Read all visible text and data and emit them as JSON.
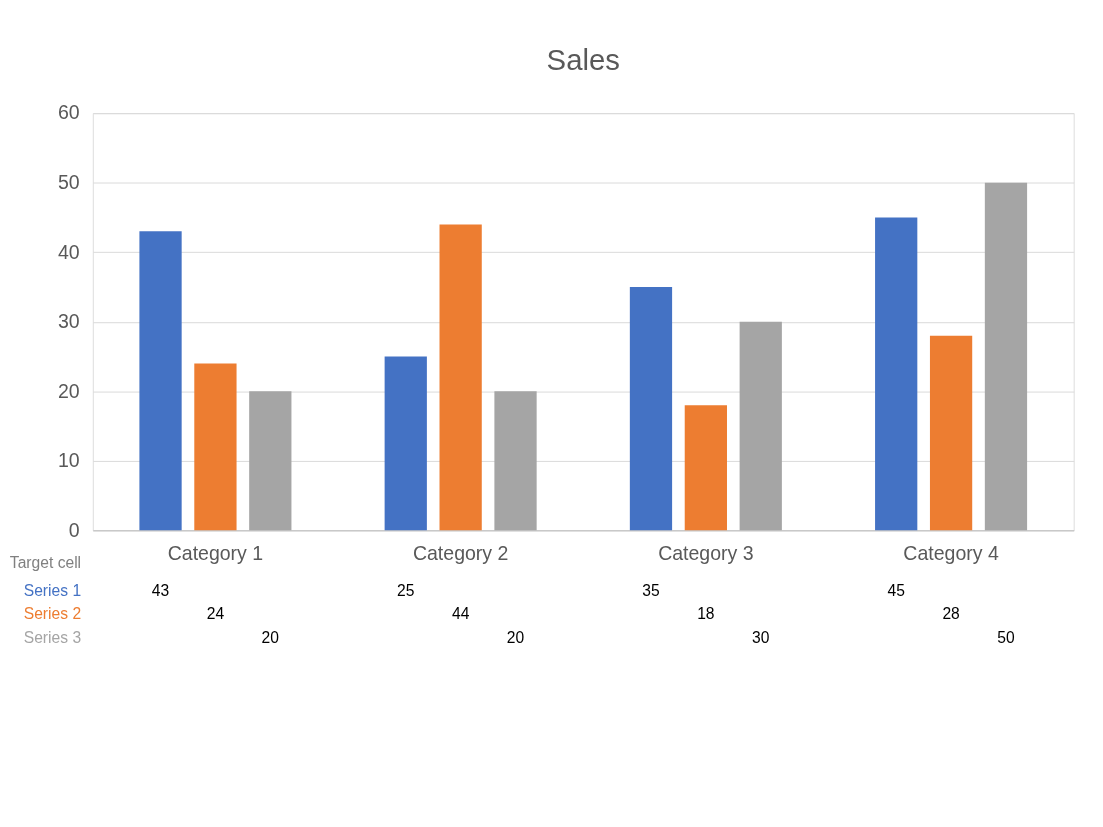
{
  "chart_data": {
    "type": "bar",
    "title": "Sales",
    "categories": [
      "Category 1",
      "Category 2",
      "Category 3",
      "Category 4"
    ],
    "series": [
      {
        "name": "Series 1",
        "color": "#4472c4",
        "values": [
          43,
          25,
          35,
          45
        ]
      },
      {
        "name": "Series 2",
        "color": "#ed7d31",
        "values": [
          24,
          44,
          18,
          28
        ]
      },
      {
        "name": "Series 3",
        "color": "#a5a5a5",
        "values": [
          20,
          20,
          30,
          50
        ]
      }
    ],
    "ylim": [
      0,
      60
    ],
    "yticks": [
      0,
      10,
      20,
      30,
      40,
      50,
      60
    ],
    "grid": "y",
    "data_labels": true,
    "annotations": [
      "Target cell"
    ]
  }
}
